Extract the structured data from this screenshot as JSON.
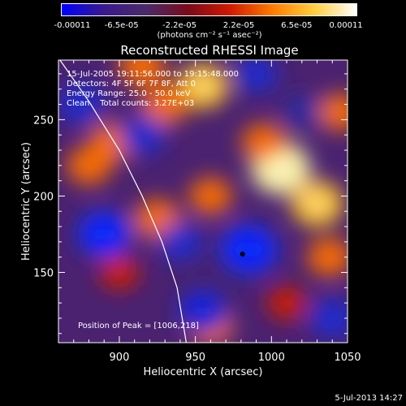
{
  "colorbar": {
    "ticks": [
      "-0.00011",
      "-6.5e-05",
      "-2.2e-05",
      "2.2e-05",
      "6.5e-05",
      "0.00011"
    ],
    "tick_values": [
      -0.00011,
      -6.5e-05,
      -2.2e-05,
      2.2e-05,
      6.5e-05,
      0.00011
    ],
    "unit_label": "(photons cm⁻² s⁻¹ asec⁻²)",
    "colors": [
      "#0000ff",
      "#3a1a8c",
      "#4a2a6a",
      "#7a0a1a",
      "#d01a00",
      "#ff7a00",
      "#ffcf40",
      "#ffffff"
    ]
  },
  "chart_data": {
    "type": "heatmap",
    "title": "Reconstructed RHESSI Image",
    "xlabel": "Heliocentric X (arcsec)",
    "ylabel": "Heliocentric Y (arcsec)",
    "xlim": [
      860,
      1050
    ],
    "ylim": [
      104,
      289
    ],
    "x_ticks": [
      900,
      950,
      1000,
      1050
    ],
    "y_ticks": [
      150,
      200,
      250
    ],
    "annotations": [
      "15-Jul-2005 19:11:56.000 to 19:15:48.000",
      "Detectors: 4F 5F 6F 7F 8F, Att 0",
      "Energy Range: 25.0 - 50.0 keV",
      "Clean    Total counts: 3.27E+03"
    ],
    "peak_label": "Position of Peak = [1006,218]",
    "peak": [
      1006,
      218
    ],
    "marked_point": [
      981,
      162
    ],
    "limb_curve": [
      [
        861,
        289
      ],
      [
        880,
        262
      ],
      [
        900,
        230
      ],
      [
        915,
        200
      ],
      [
        928,
        170
      ],
      [
        938,
        140
      ],
      [
        944,
        104
      ]
    ],
    "blobs": [
      {
        "x": 1006,
        "y": 218,
        "v": 1.0
      },
      {
        "x": 1030,
        "y": 195,
        "v": 0.8
      },
      {
        "x": 1038,
        "y": 160,
        "v": 0.55
      },
      {
        "x": 955,
        "y": 272,
        "v": 0.75
      },
      {
        "x": 930,
        "y": 260,
        "v": 0.6
      },
      {
        "x": 915,
        "y": 285,
        "v": 0.6
      },
      {
        "x": 880,
        "y": 220,
        "v": 0.55
      },
      {
        "x": 895,
        "y": 235,
        "v": 0.55
      },
      {
        "x": 925,
        "y": 185,
        "v": 0.6
      },
      {
        "x": 960,
        "y": 200,
        "v": 0.5
      },
      {
        "x": 995,
        "y": 235,
        "v": 0.55
      },
      {
        "x": 900,
        "y": 150,
        "v": 0.4
      },
      {
        "x": 960,
        "y": 115,
        "v": 0.55
      },
      {
        "x": 1010,
        "y": 130,
        "v": 0.4
      },
      {
        "x": 1045,
        "y": 255,
        "v": 0.5
      },
      {
        "x": 985,
        "y": 165,
        "v": -0.95
      },
      {
        "x": 955,
        "y": 125,
        "v": -0.7
      },
      {
        "x": 915,
        "y": 240,
        "v": -0.6
      },
      {
        "x": 890,
        "y": 175,
        "v": -0.8
      },
      {
        "x": 875,
        "y": 260,
        "v": -0.6
      },
      {
        "x": 1040,
        "y": 120,
        "v": -0.6
      },
      {
        "x": 940,
        "y": 170,
        "v": -0.55
      },
      {
        "x": 990,
        "y": 280,
        "v": -0.5
      },
      {
        "x": 1020,
        "y": 255,
        "v": -0.4
      }
    ]
  },
  "footer": {
    "date": "5-Jul-2013 14:27"
  }
}
